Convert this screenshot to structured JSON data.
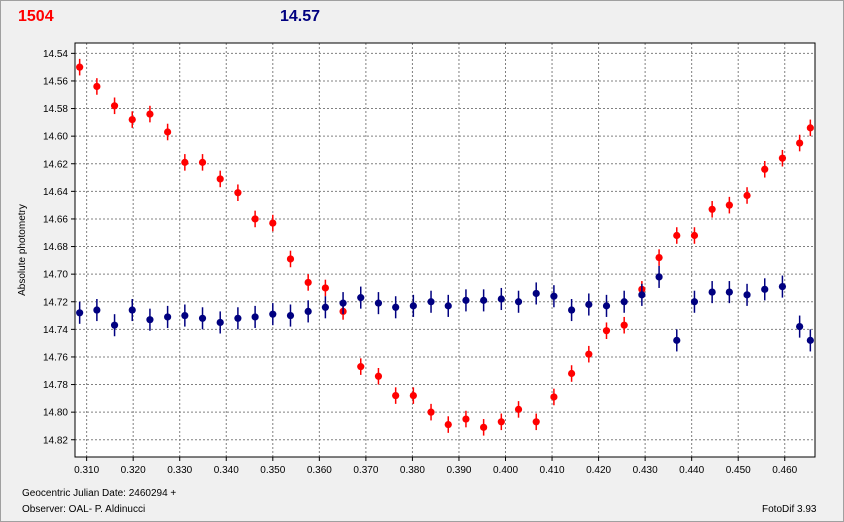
{
  "header": {
    "left_value": "1504",
    "right_value": "14.57"
  },
  "footer": {
    "date_label": "Geocentric Julian Date: 2460294 +",
    "observer": "Observer: OAL- P. Aldinucci",
    "software": "FotoDif 3.93"
  },
  "colors": {
    "series_red": "#ff0000",
    "series_blue": "#000080",
    "plot_bg": "#ffffff",
    "grid": "#808080"
  },
  "chart_data": {
    "type": "scatter",
    "title": "",
    "xlabel": "",
    "ylabel": "Absolute photometry",
    "xlim": [
      0.3075,
      0.4665
    ],
    "ylim": [
      14.8325,
      14.5325
    ],
    "y_inverted": true,
    "grid": true,
    "legend": "none",
    "xticks": [
      "0.310",
      "0.320",
      "0.330",
      "0.340",
      "0.350",
      "0.360",
      "0.370",
      "0.380",
      "0.390",
      "0.400",
      "0.410",
      "0.420",
      "0.430",
      "0.440",
      "0.450",
      "0.460"
    ],
    "yticks": [
      "14.54",
      "14.56",
      "14.58",
      "14.60",
      "14.62",
      "14.64",
      "14.66",
      "14.68",
      "14.70",
      "14.72",
      "14.74",
      "14.76",
      "14.78",
      "14.80",
      "14.82"
    ],
    "series": [
      {
        "color": "#ff0000",
        "error": 0.006,
        "x": [
          0.3085,
          0.3122,
          0.316,
          0.3198,
          0.3236,
          0.3274,
          0.3311,
          0.3349,
          0.3387,
          0.3425,
          0.3462,
          0.35,
          0.3538,
          0.3576,
          0.3613,
          0.3651,
          0.3689,
          0.3727,
          0.3764,
          0.3802,
          0.384,
          0.3877,
          0.3915,
          0.3953,
          0.3991,
          0.4028,
          0.4066,
          0.4104,
          0.4142,
          0.4179,
          0.4217,
          0.4255,
          0.4293,
          0.433,
          0.4368,
          0.4406,
          0.4444,
          0.4481,
          0.4519,
          0.4557,
          0.4595,
          0.4632,
          0.4655
        ],
        "y": [
          14.55,
          14.564,
          14.578,
          14.588,
          14.584,
          14.597,
          14.619,
          14.619,
          14.631,
          14.641,
          14.66,
          14.663,
          14.689,
          14.706,
          14.71,
          14.727,
          14.767,
          14.774,
          14.788,
          14.788,
          14.8,
          14.809,
          14.805,
          14.811,
          14.807,
          14.798,
          14.807,
          14.789,
          14.772,
          14.758,
          14.741,
          14.737,
          14.711,
          14.688,
          14.672,
          14.672,
          14.653,
          14.65,
          14.643,
          14.624,
          14.616,
          14.605,
          14.594
        ]
      },
      {
        "color": "#000080",
        "error": 0.008,
        "x": [
          0.3085,
          0.3122,
          0.316,
          0.3198,
          0.3236,
          0.3274,
          0.3311,
          0.3349,
          0.3387,
          0.3425,
          0.3462,
          0.35,
          0.3538,
          0.3576,
          0.3613,
          0.3651,
          0.3689,
          0.3727,
          0.3764,
          0.3802,
          0.384,
          0.3877,
          0.3915,
          0.3953,
          0.3991,
          0.4028,
          0.4066,
          0.4104,
          0.4142,
          0.4179,
          0.4217,
          0.4255,
          0.4293,
          0.433,
          0.4368,
          0.4406,
          0.4444,
          0.4481,
          0.4519,
          0.4557,
          0.4595,
          0.4632,
          0.4655
        ],
        "y": [
          14.728,
          14.726,
          14.737,
          14.726,
          14.733,
          14.731,
          14.73,
          14.732,
          14.735,
          14.732,
          14.731,
          14.729,
          14.73,
          14.727,
          14.724,
          14.721,
          14.717,
          14.721,
          14.724,
          14.723,
          14.72,
          14.723,
          14.719,
          14.719,
          14.718,
          14.72,
          14.714,
          14.716,
          14.726,
          14.722,
          14.723,
          14.72,
          14.715,
          14.702,
          14.748,
          14.72,
          14.713,
          14.713,
          14.715,
          14.711,
          14.709,
          14.738,
          14.748
        ]
      }
    ]
  }
}
